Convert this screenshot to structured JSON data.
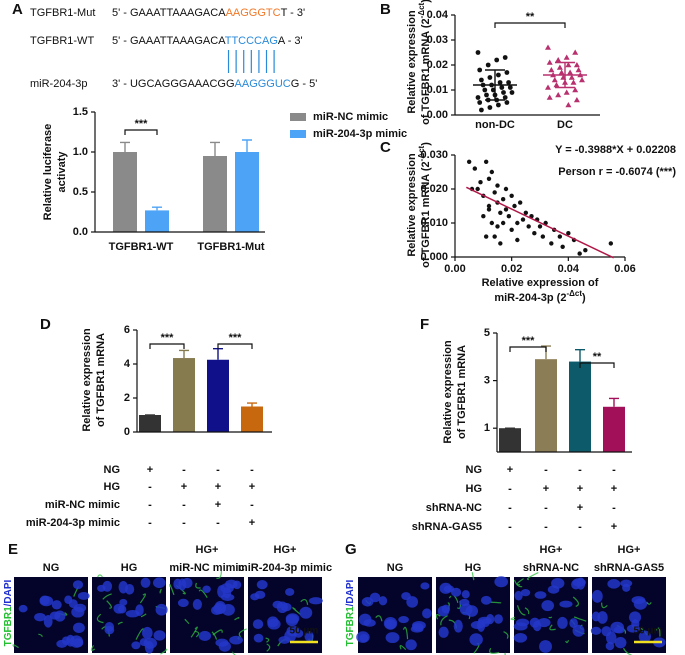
{
  "chart_data": [
    {
      "type": "bar",
      "panel": "A",
      "y_label": [
        "Relative luciferase",
        "activaty"
      ],
      "categories": [
        "TGFBR1-WT",
        "TGFBR1-Mut"
      ],
      "series": [
        {
          "name": "miR-NC mimic",
          "color": "#8a8a8a",
          "values": [
            1.0,
            0.95
          ],
          "errors": [
            0.12,
            0.17
          ]
        },
        {
          "name": "miR-204-3p mimic",
          "color": "#4da3f5",
          "values": [
            0.27,
            1.0
          ],
          "errors": [
            0.04,
            0.15
          ]
        }
      ],
      "ylim": [
        0,
        1.5
      ],
      "yticks": [
        {
          "value": 0,
          "label": "0.0"
        },
        0.5,
        {
          "value": 1,
          "label": "1.0"
        },
        1.5
      ],
      "significance": [
        "***"
      ]
    },
    {
      "type": "strip",
      "panel": "B",
      "y_label": [
        "Relative expression",
        "of TGFBR1 mRNA (2",
        "-Δct",
        ")"
      ],
      "categories": [
        "non-DC",
        "DC"
      ],
      "series": [
        {
          "color": "#111111",
          "marker": "circle",
          "mean": 0.012,
          "sd": 0.006,
          "values": [
            0.025,
            0.023,
            0.022,
            0.02,
            0.018,
            0.017,
            0.016,
            0.015,
            0.014,
            0.013,
            0.013,
            0.012,
            0.012,
            0.011,
            0.011,
            0.01,
            0.01,
            0.009,
            0.009,
            0.008,
            0.008,
            0.007,
            0.007,
            0.006,
            0.006,
            0.005,
            0.005,
            0.004,
            0.003,
            0.002
          ]
        },
        {
          "color": "#b8306e",
          "marker": "triangle",
          "mean": 0.016,
          "sd": 0.005,
          "values": [
            0.027,
            0.025,
            0.023,
            0.022,
            0.021,
            0.02,
            0.02,
            0.019,
            0.018,
            0.018,
            0.017,
            0.017,
            0.016,
            0.016,
            0.015,
            0.015,
            0.014,
            0.014,
            0.013,
            0.013,
            0.012,
            0.011,
            0.01,
            0.009,
            0.008,
            0.007,
            0.006,
            0.004
          ]
        }
      ],
      "ylim": [
        0,
        0.04
      ],
      "yticks": [
        {
          "value": 0,
          "label": "0.00"
        },
        0.01,
        0.02,
        0.03,
        0.04
      ],
      "significance": [
        "**"
      ]
    },
    {
      "type": "scatter",
      "panel": "C",
      "y_label": [
        "Relative expression",
        "of TGFBR1 mRNA (2",
        "-Δct",
        ")"
      ],
      "x_label": [
        "Relative expression of",
        "miR-204-3p (2",
        "-Δct",
        ")"
      ],
      "annotations": [
        "Y = -0.3988*X + 0.02208",
        "Person r = -0.6074 (***)"
      ],
      "annotation_color": "#9c1450",
      "color": "#111111",
      "x": [
        0.005,
        0.006,
        0.007,
        0.008,
        0.009,
        0.01,
        0.01,
        0.011,
        0.011,
        0.012,
        0.012,
        0.013,
        0.013,
        0.014,
        0.014,
        0.015,
        0.015,
        0.016,
        0.016,
        0.017,
        0.017,
        0.018,
        0.018,
        0.019,
        0.02,
        0.02,
        0.021,
        0.022,
        0.022,
        0.023,
        0.024,
        0.025,
        0.026,
        0.027,
        0.028,
        0.029,
        0.03,
        0.031,
        0.032,
        0.034,
        0.035,
        0.037,
        0.038,
        0.04,
        0.042,
        0.044,
        0.046,
        0.055,
        0.012,
        0.015
      ],
      "values": [
        0.028,
        0.02,
        0.026,
        0.02,
        0.022,
        0.018,
        0.012,
        0.028,
        0.006,
        0.023,
        0.014,
        0.025,
        0.01,
        0.019,
        0.006,
        0.021,
        0.016,
        0.013,
        0.004,
        0.017,
        0.01,
        0.02,
        0.014,
        0.012,
        0.018,
        0.008,
        0.015,
        0.01,
        0.005,
        0.016,
        0.011,
        0.013,
        0.009,
        0.012,
        0.007,
        0.011,
        0.009,
        0.006,
        0.01,
        0.004,
        0.008,
        0.006,
        0.003,
        0.007,
        0.005,
        0.001,
        0.002,
        0.004,
        0.015,
        0.009
      ],
      "fit": {
        "slope": -0.3988,
        "intercept": 0.02208,
        "color": "#b01848",
        "xlim": [
          0.004,
          0.056
        ]
      },
      "xlim": [
        0,
        0.06
      ],
      "xticks": [
        {
          "value": 0,
          "label": "0.00"
        },
        0.02,
        0.04,
        0.06
      ],
      "ylim": [
        0,
        0.03
      ],
      "yticks": [
        {
          "value": 0,
          "label": "0.000"
        },
        {
          "value": 0.01,
          "label": "0.010"
        },
        {
          "value": 0.02,
          "label": "0.020"
        },
        {
          "value": 0.03,
          "label": "0.030"
        }
      ]
    },
    {
      "type": "bar",
      "panel": "D",
      "y_label": [
        "Relative expression",
        "of TGFBR1 mRNA"
      ],
      "values": [
        1,
        4.35,
        4.25,
        1.5
      ],
      "errors": [
        0,
        0.45,
        0.65,
        0.2
      ],
      "colors": [
        "#333333",
        "#867a4f",
        "#10108a",
        "#c8680e"
      ],
      "ylim": [
        0,
        6
      ],
      "yticks": [
        0,
        2,
        4,
        6
      ],
      "significance": [
        "***",
        "***"
      ],
      "conditions": [
        {
          "label": "NG",
          "signs": [
            "+",
            "-",
            "-",
            "-"
          ]
        },
        {
          "label": "HG",
          "signs": [
            "-",
            "+",
            "+",
            "+"
          ]
        },
        {
          "label": "miR-NC mimic",
          "signs": [
            "-",
            "-",
            "+",
            "-"
          ]
        },
        {
          "label": "miR-204-3p mimic",
          "signs": [
            "-",
            "-",
            "-",
            "+"
          ]
        }
      ]
    },
    {
      "type": "bar",
      "panel": "F",
      "y_label": [
        "Relative expression",
        "of TGFBR1 mRNA"
      ],
      "values": [
        1,
        3.9,
        3.8,
        1.9
      ],
      "errors": [
        0,
        0.55,
        0.5,
        0.35
      ],
      "colors": [
        "#333333",
        "#8b7d55",
        "#0d5a6b",
        "#a3105a"
      ],
      "ylim": [
        0,
        5
      ],
      "yticks": [
        1,
        3,
        5
      ],
      "significance": [
        "***",
        "**"
      ],
      "conditions": [
        {
          "label": "NG",
          "signs": [
            "+",
            "-",
            "-",
            "-"
          ]
        },
        {
          "label": "HG",
          "signs": [
            "-",
            "+",
            "+",
            "+"
          ]
        },
        {
          "label": "shRNA-NC",
          "signs": [
            "-",
            "-",
            "+",
            "-"
          ]
        },
        {
          "label": "shRNA-GAS5",
          "signs": [
            "-",
            "-",
            "-",
            "+"
          ]
        }
      ]
    }
  ],
  "sequences": [
    {
      "name": "TGFBR1-Mut",
      "parts": [
        "5' - GAAATTAAAGACA",
        "AAGGGTC",
        "T - 3'"
      ],
      "highlight_color": "#f07828"
    },
    {
      "name": "TGFBR1-WT",
      "parts": [
        "5' - GAAATTAAAGACA",
        "TTCCCAG",
        "A - 3'"
      ],
      "highlight_color": "#2a8ad8"
    },
    {
      "name": "miR-204-3p",
      "parts": [
        "3' - UGCAGGGAAACGG",
        "AAGGGUC",
        "G - 5'"
      ],
      "highlight_color": "#2a8ad8"
    }
  ],
  "figures": [
    {
      "panel": "E",
      "stain": [
        "TGFBR1",
        "/DAPI"
      ],
      "labels": [
        [
          "NG"
        ],
        [
          "HG"
        ],
        [
          "HG+",
          "miR-NC mimic"
        ],
        [
          "HG+",
          "miR-204-3p mimic"
        ]
      ],
      "scale_bar": "50 μm"
    },
    {
      "panel": "G",
      "stain": [
        "TGFBR1",
        "/DAPI"
      ],
      "labels": [
        [
          "NG"
        ],
        [
          "HG"
        ],
        [
          "HG+",
          "shRNA-NC"
        ],
        [
          "HG+",
          "shRNA-GAS5"
        ]
      ],
      "scale_bar": "50 μm"
    }
  ]
}
